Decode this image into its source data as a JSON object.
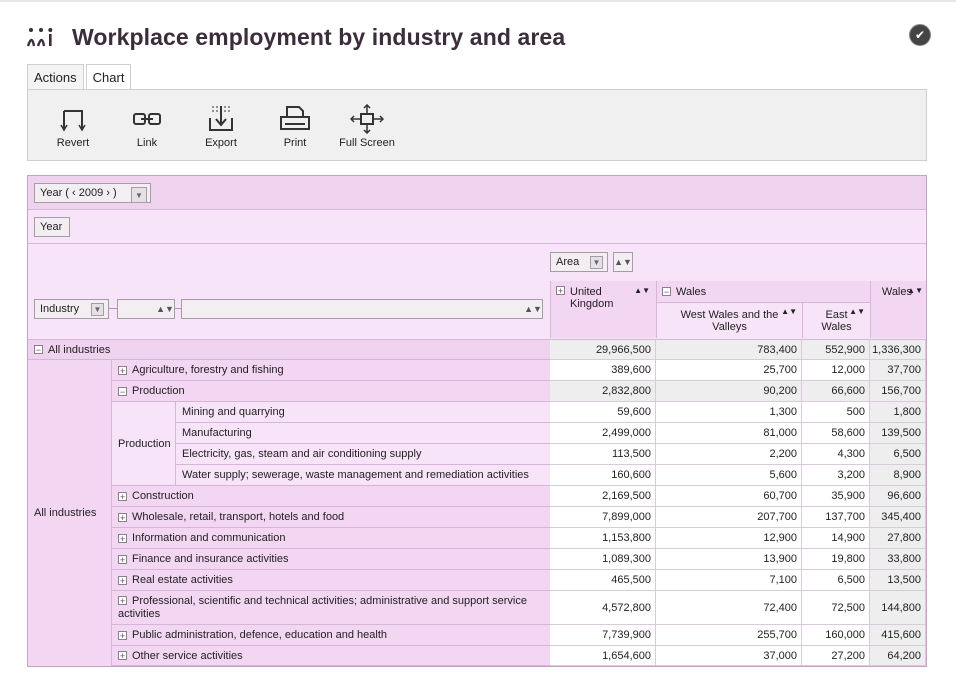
{
  "title": "Workplace employment by industry and area",
  "tabs": [
    "Actions",
    "Chart"
  ],
  "toolbar": {
    "revert": "Revert",
    "link": "Link",
    "export": "Export",
    "print": "Print",
    "full_screen": "Full Screen"
  },
  "filters": {
    "year_chip": "Year ( ‹ 2009 › )",
    "year_row": "Year",
    "area": "Area",
    "industry": "Industry"
  },
  "columns": {
    "uk": "United Kingdom",
    "wales": "Wales",
    "west_wales": "West Wales and the Valleys",
    "east_wales": "East Wales",
    "wales_total": "Wales"
  },
  "rows": {
    "all_industries": {
      "label": "All industries",
      "uk": "29,966,500",
      "ww": "783,400",
      "ew": "552,900",
      "wt": "1,336,300"
    },
    "side_all": "All industries",
    "side_production": "Production",
    "agriculture": {
      "label": "Agriculture, forestry and fishing",
      "uk": "389,600",
      "ww": "25,700",
      "ew": "12,000",
      "wt": "37,700"
    },
    "production": {
      "label": "Production",
      "uk": "2,832,800",
      "ww": "90,200",
      "ew": "66,600",
      "wt": "156,700"
    },
    "mining": {
      "label": "Mining and quarrying",
      "uk": "59,600",
      "ww": "1,300",
      "ew": "500",
      "wt": "1,800"
    },
    "manufacturing": {
      "label": "Manufacturing",
      "uk": "2,499,000",
      "ww": "81,000",
      "ew": "58,600",
      "wt": "139,500"
    },
    "electricity": {
      "label": "Electricity, gas, steam and air conditioning supply",
      "uk": "113,500",
      "ww": "2,200",
      "ew": "4,300",
      "wt": "6,500"
    },
    "water": {
      "label": "Water supply; sewerage, waste management and remediation activities",
      "uk": "160,600",
      "ww": "5,600",
      "ew": "3,200",
      "wt": "8,900"
    },
    "construction": {
      "label": "Construction",
      "uk": "2,169,500",
      "ww": "60,700",
      "ew": "35,900",
      "wt": "96,600"
    },
    "wholesale": {
      "label": "Wholesale, retail, transport, hotels and food",
      "uk": "7,899,000",
      "ww": "207,700",
      "ew": "137,700",
      "wt": "345,400"
    },
    "information": {
      "label": "Information and communication",
      "uk": "1,153,800",
      "ww": "12,900",
      "ew": "14,900",
      "wt": "27,800"
    },
    "finance": {
      "label": "Finance and insurance activities",
      "uk": "1,089,300",
      "ww": "13,900",
      "ew": "19,800",
      "wt": "33,800"
    },
    "real_estate": {
      "label": "Real estate activities",
      "uk": "465,500",
      "ww": "7,100",
      "ew": "6,500",
      "wt": "13,500"
    },
    "professional": {
      "label": "Professional, scientific and technical activities; administrative and support service activities",
      "uk": "4,572,800",
      "ww": "72,400",
      "ew": "72,500",
      "wt": "144,800"
    },
    "public_admin": {
      "label": "Public administration, defence, education and health",
      "uk": "7,739,900",
      "ww": "255,700",
      "ew": "160,000",
      "wt": "415,600"
    },
    "other_service": {
      "label": "Other service activities",
      "uk": "1,654,600",
      "ww": "37,000",
      "ew": "27,200",
      "wt": "64,200"
    }
  }
}
